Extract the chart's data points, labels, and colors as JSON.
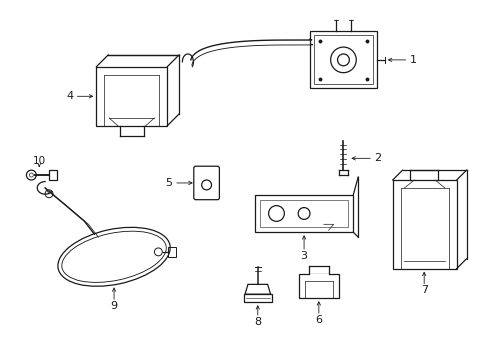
{
  "background_color": "#ffffff",
  "line_color": "#1a1a1a",
  "fig_width": 4.89,
  "fig_height": 3.6,
  "dpi": 100,
  "parts": [
    "1",
    "2",
    "3",
    "4",
    "5",
    "6",
    "7",
    "8",
    "9",
    "10"
  ]
}
